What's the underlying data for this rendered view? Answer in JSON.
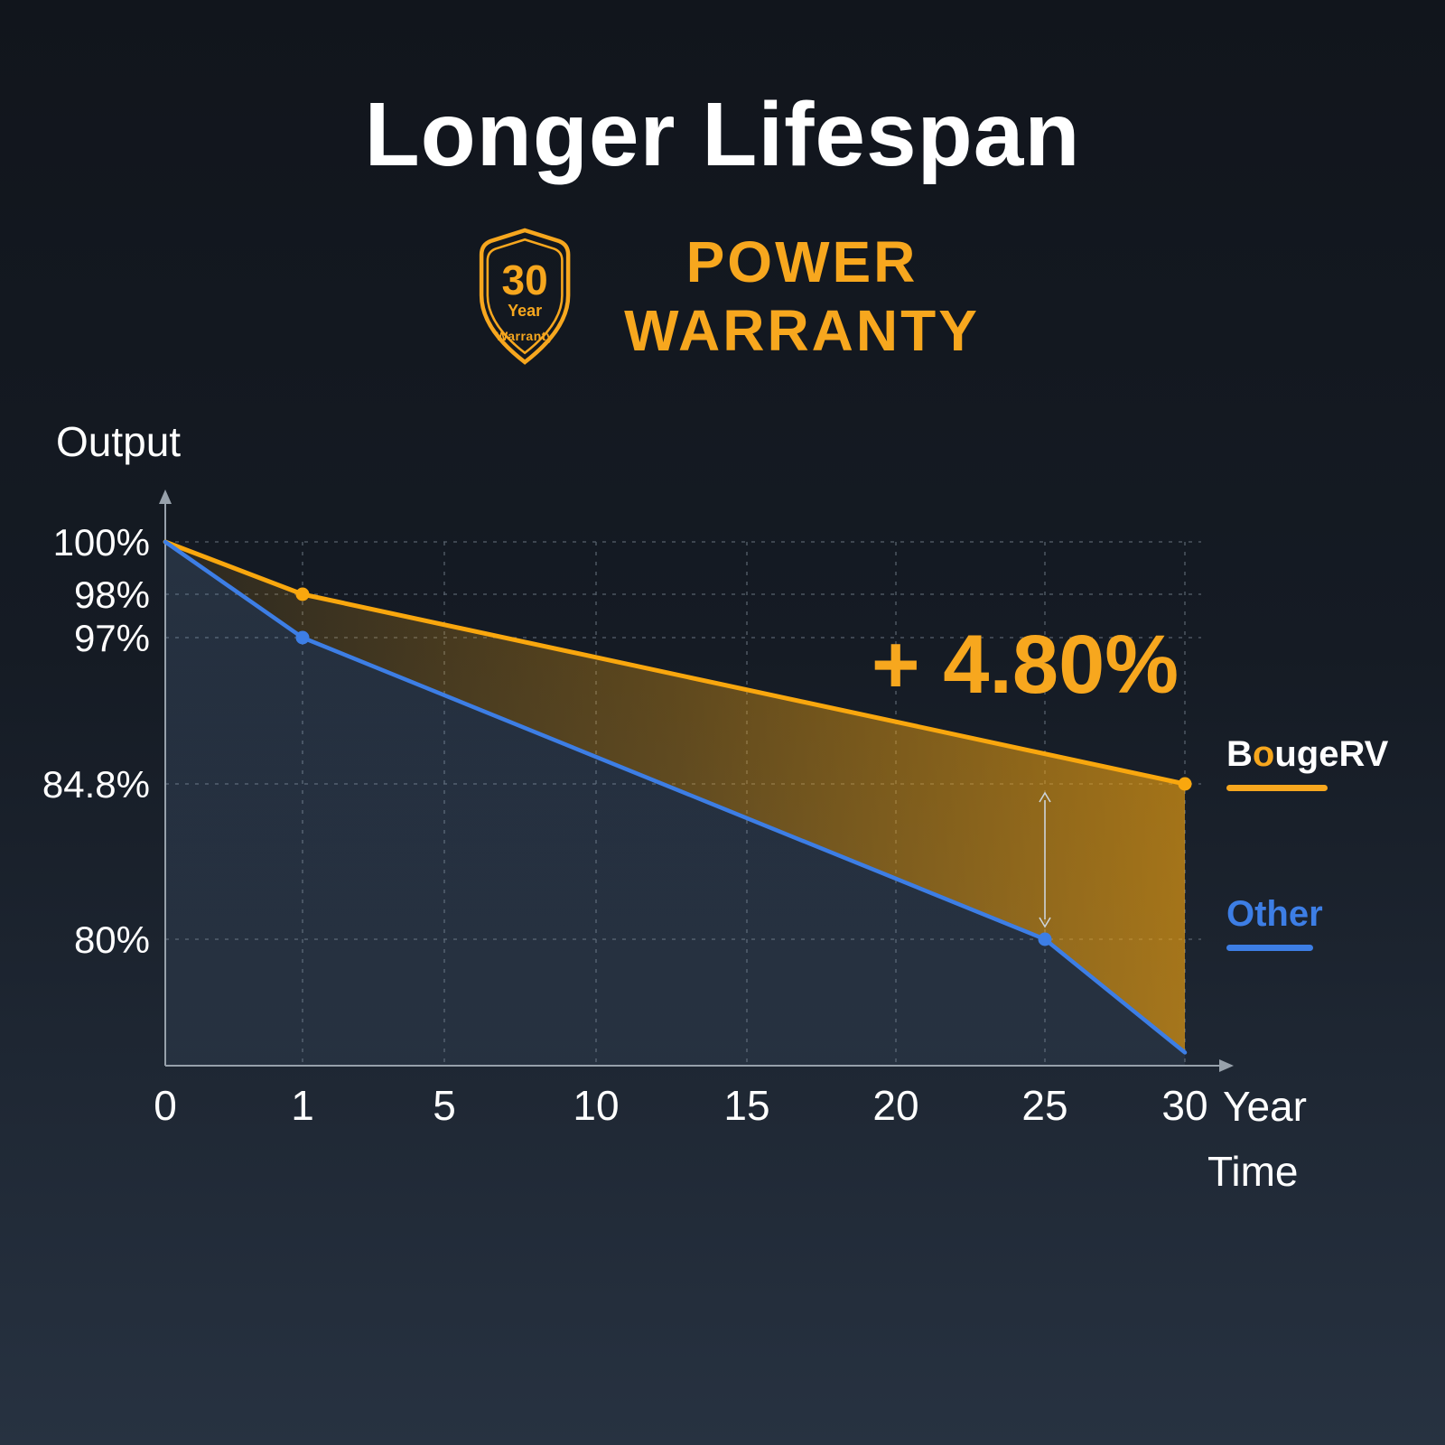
{
  "title": "Longer Lifespan",
  "badge": {
    "value": "30",
    "unit": "Year",
    "label": "Warranty"
  },
  "warranty": {
    "line1": "POWER",
    "line2": "WARRANTY"
  },
  "colors": {
    "accent": "#F7A71E",
    "blue": "#3D7EE5",
    "grid": "#5f6974",
    "axis": "#97A1AB",
    "arrow": "#CDD4DB",
    "text": "#FFFFFF"
  },
  "legend": {
    "bougerv": {
      "prefix": "B",
      "o": "o",
      "suffix": "ugeRV"
    },
    "other_label": "Other"
  },
  "chart_data": {
    "type": "line",
    "title": "Longer Lifespan",
    "ylabel": "Output",
    "xlabel": "Time",
    "x_unit": "Year",
    "x_ticks": [
      0,
      1,
      5,
      10,
      15,
      20,
      25,
      30
    ],
    "y_ticks": [
      "100%",
      "98%",
      "97%",
      "84.8%",
      "80%"
    ],
    "y_tick_values": [
      100,
      98,
      97,
      84.8,
      80
    ],
    "grid": "dashed",
    "annotation": "+ 4.80%",
    "difference_arrow": {
      "x": 25,
      "from_pct": 84.8,
      "to_pct": 80
    },
    "series": [
      {
        "name": "BougeRV",
        "color": "#F9A70E",
        "points": [
          [
            0,
            100
          ],
          [
            1,
            98
          ],
          [
            30,
            84.8
          ]
        ],
        "markers": [
          [
            1,
            98
          ],
          [
            30,
            84.8
          ]
        ]
      },
      {
        "name": "Other",
        "color": "#3D7EE5",
        "points": [
          [
            0,
            100
          ],
          [
            1,
            97
          ],
          [
            25,
            80
          ],
          [
            30,
            76.5
          ]
        ],
        "markers": [
          [
            1,
            97
          ],
          [
            25,
            80
          ]
        ]
      }
    ],
    "legend": [
      "BougeRV",
      "Other"
    ],
    "legend_position": "right"
  }
}
